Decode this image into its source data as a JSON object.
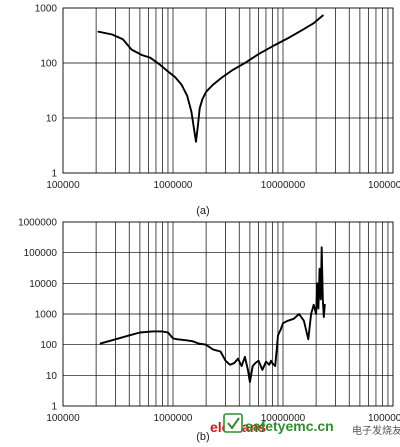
{
  "chart_data": [
    {
      "type": "line",
      "title": "",
      "caption": "(a)",
      "xlabel": "",
      "ylabel": "",
      "xscale": "log",
      "yscale": "log",
      "xlim": [
        100000,
        100000000
      ],
      "ylim": [
        1,
        1000
      ],
      "grid": true,
      "x_tick_labels": [
        "100000",
        "1000000",
        "10000000",
        "100000000"
      ],
      "y_tick_labels": [
        "1",
        "10",
        "100",
        "1000"
      ],
      "series": [
        {
          "x": [
            210000,
            280000,
            350000,
            420000,
            520000,
            620000,
            750000,
            900000,
            1050000,
            1200000,
            1350000,
            1470000,
            1560000,
            1620000,
            1680000,
            1750000,
            1850000,
            2000000,
            2300000,
            2800000,
            3500000,
            4500000,
            6000000,
            8000000,
            11000000,
            15000000,
            19000000,
            23000000
          ],
          "y": [
            370,
            330,
            270,
            175,
            140,
            125,
            95,
            70,
            55,
            40,
            25,
            13,
            6,
            3.7,
            7,
            15,
            22,
            30,
            40,
            55,
            75,
            100,
            145,
            200,
            280,
            400,
            530,
            730
          ]
        }
      ]
    },
    {
      "type": "line",
      "title": "",
      "caption": "(b)",
      "xlabel": "",
      "ylabel": "",
      "xscale": "log",
      "yscale": "log",
      "xlim": [
        100000,
        100000000
      ],
      "ylim": [
        1,
        1000000
      ],
      "grid": true,
      "x_tick_labels": [
        "100000",
        "1000000",
        "10000000",
        "100000000"
      ],
      "y_tick_labels": [
        "1",
        "10",
        "100",
        "1000",
        "10000",
        "100000",
        "1000000"
      ],
      "series": [
        {
          "x": [
            220000,
            300000,
            400000,
            500000,
            650000,
            800000,
            900000,
            1000000,
            1100000,
            1300000,
            1500000,
            1700000,
            2000000,
            2300000,
            2700000,
            3000000,
            3300000,
            3600000,
            3900000,
            4200000,
            4500000,
            4800000,
            5000000,
            5300000,
            5600000,
            6000000,
            6500000,
            7000000,
            7500000,
            7800000,
            8000000,
            8500000,
            9000000,
            9500000,
            10000000,
            11000000,
            12500000,
            14000000,
            15500000,
            17000000,
            18000000,
            19000000,
            20000000,
            20500000,
            21000000,
            21500000,
            22000000,
            22500000,
            23000000,
            23500000,
            24000000
          ],
          "y": [
            110,
            150,
            200,
            250,
            270,
            270,
            250,
            160,
            150,
            140,
            130,
            110,
            100,
            70,
            60,
            30,
            22,
            25,
            35,
            20,
            40,
            15,
            6,
            20,
            25,
            30,
            15,
            28,
            22,
            30,
            25,
            20,
            200,
            300,
            500,
            600,
            700,
            1000,
            600,
            150,
            1000,
            2000,
            1000,
            10000,
            1500,
            30000,
            3000,
            150000,
            3000,
            800,
            2000
          ]
        }
      ]
    }
  ],
  "watermark": {
    "brand": "elecfans",
    "site_icon": "safety-shield-icon",
    "site": "safetyemc.cn",
    "trailing_text": "电子发烧友",
    "brand_color": "#cc1a1a",
    "site_color": "#2f8f2f"
  }
}
